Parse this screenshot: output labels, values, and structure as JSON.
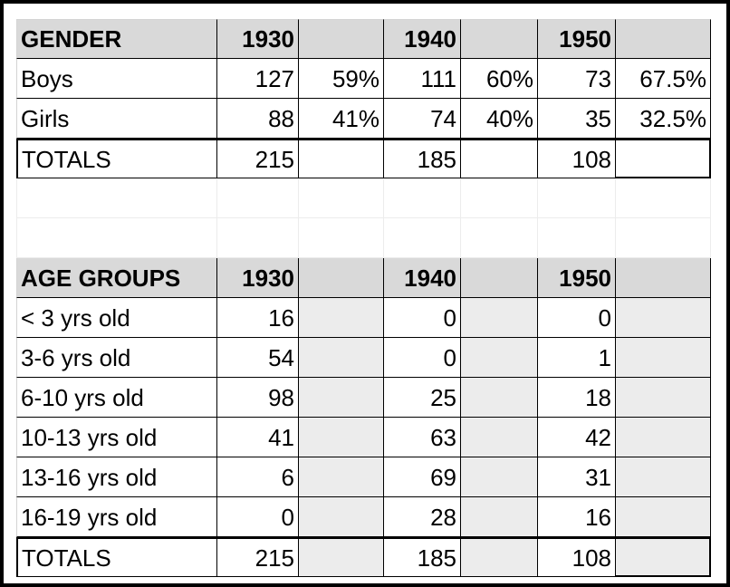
{
  "gender_table": {
    "header": [
      "GENDER",
      "1930",
      "",
      "1940",
      "",
      "1950",
      ""
    ],
    "rows": [
      [
        "Boys",
        "127",
        "59%",
        "111",
        "60%",
        "73",
        "67.5%"
      ],
      [
        "Girls",
        "88",
        "41%",
        "74",
        "40%",
        "35",
        "32.5%"
      ]
    ],
    "totals": [
      "TOTALS",
      "215",
      "",
      "185",
      "",
      "108",
      ""
    ]
  },
  "age_table": {
    "header": [
      "AGE GROUPS",
      "1930",
      "",
      "1940",
      "",
      "1950",
      ""
    ],
    "rows": [
      [
        "< 3 yrs old",
        "16",
        "",
        "0",
        "",
        "0",
        ""
      ],
      [
        "3-6 yrs old",
        "54",
        "",
        "0",
        "",
        "1",
        ""
      ],
      [
        "6-10 yrs old",
        "98",
        "",
        "25",
        "",
        "18",
        ""
      ],
      [
        "10-13 yrs old",
        "41",
        "",
        "63",
        "",
        "42",
        ""
      ],
      [
        "13-16 yrs old",
        "6",
        "",
        "69",
        "",
        "31",
        ""
      ],
      [
        "16-19 yrs old",
        "0",
        "",
        "28",
        "",
        "16",
        ""
      ]
    ],
    "totals": [
      "TOTALS",
      "215",
      "",
      "185",
      "",
      "108",
      ""
    ]
  }
}
